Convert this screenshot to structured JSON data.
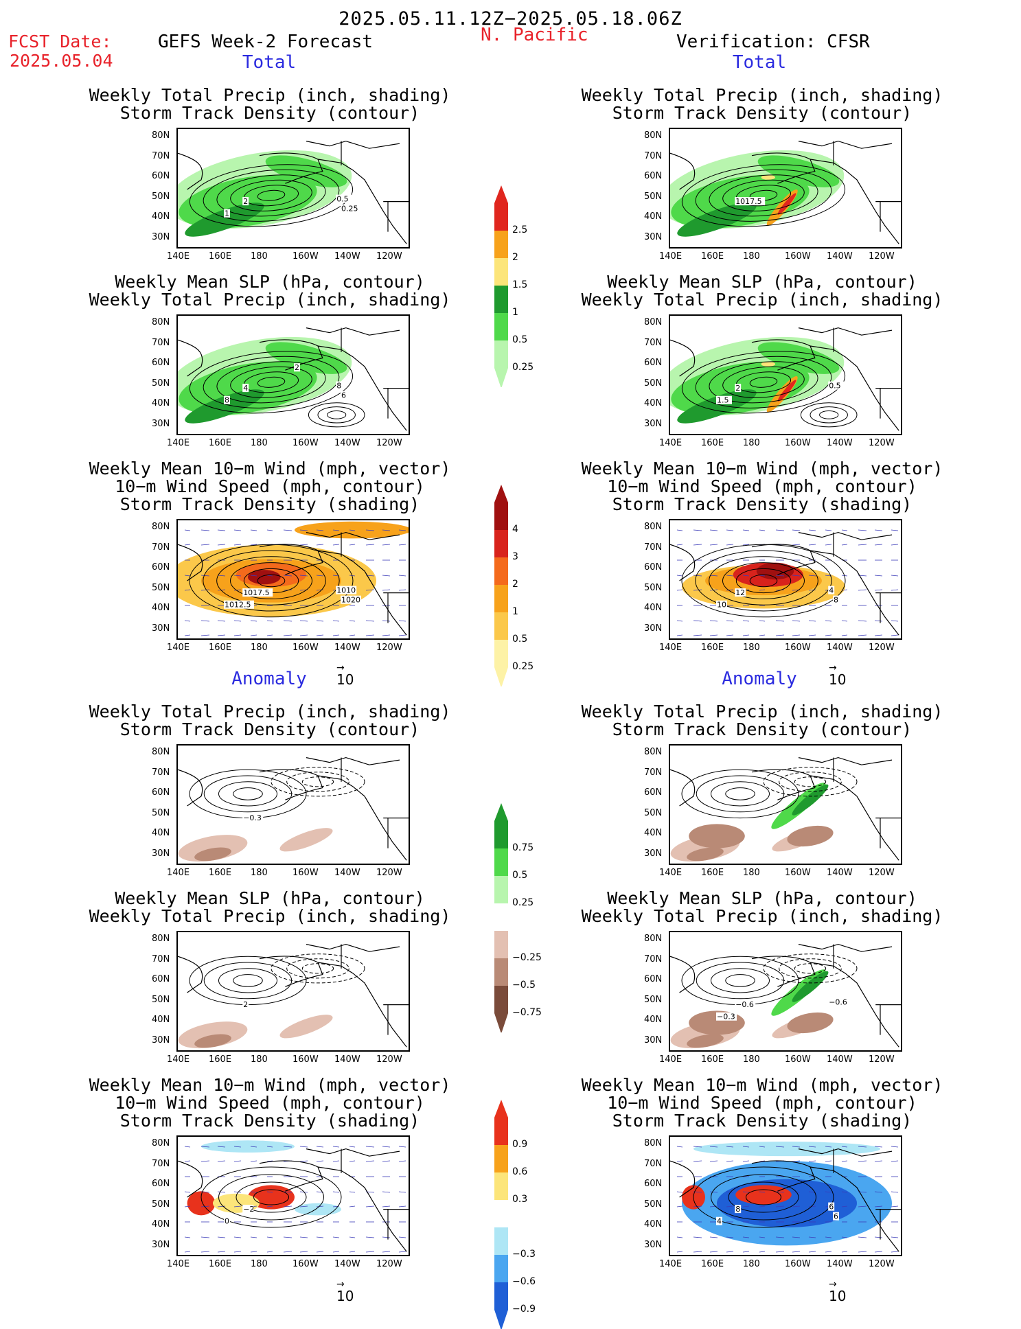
{
  "header": {
    "date_range": "2025.05.11.12Z−2025.05.18.06Z",
    "fcst_label": "FCST Date:",
    "fcst_date": "2025.05.04",
    "forecast_title": "GEFS Week-2 Forecast",
    "region": "N. Pacific",
    "verification_title": "Verification: CFSR"
  },
  "sections": {
    "total": "Total",
    "anomaly": "Anomaly"
  },
  "titles": {
    "precip_track": [
      "Weekly Total Precip (inch, shading)",
      "Storm Track Density (contour)"
    ],
    "slp_precip": [
      "Weekly Mean SLP (hPa, contour)",
      "Weekly Total Precip (inch, shading)"
    ],
    "wind_track": [
      "Weekly Mean 10−m Wind (mph, vector)",
      "10−m Wind Speed (mph, contour)",
      "Storm Track Density (shading)"
    ]
  },
  "axes": {
    "lat_ticks": [
      "80N",
      "70N",
      "60N",
      "50N",
      "40N",
      "30N"
    ],
    "lon_ticks": [
      "140E",
      "160E",
      "180",
      "160W",
      "140W",
      "120W"
    ]
  },
  "vector_ref": "10",
  "colorbars": {
    "precip_total": {
      "labels": [
        "2.5",
        "2",
        "1.5",
        "1",
        "0.5",
        "0.25"
      ],
      "colors": [
        "#e0261e",
        "#f7a21b",
        "#fce57a",
        "#1f9a2e",
        "#4fd94a",
        "#b8f5ae"
      ]
    },
    "track_total": {
      "labels": [
        "4",
        "3",
        "2",
        "1",
        "0.5",
        "0.25"
      ],
      "colors": [
        "#a01010",
        "#d8231c",
        "#f46a1c",
        "#f7a21b",
        "#fbc84a",
        "#fdf2a6"
      ]
    },
    "precip_anom": {
      "labels": [
        "0.75",
        "0.5",
        "0.25",
        "−0.25",
        "−0.5",
        "−0.75"
      ],
      "colors": [
        "#1f9a2e",
        "#4fd94a",
        "#b8f5ae",
        "#ffffff",
        "#e3c0b2",
        "#b98a76",
        "#7a4b3a"
      ]
    },
    "track_anom": {
      "labels": [
        "0.9",
        "0.6",
        "0.3",
        "−0.3",
        "−0.6",
        "−0.9"
      ],
      "colors": [
        "#e8321c",
        "#f7a21b",
        "#fce57a",
        "#ffffff",
        "#aee6f5",
        "#4aa6f0",
        "#1f5fd6"
      ]
    }
  },
  "panels": [
    {
      "id": "p1",
      "labels": [
        "2",
        "1",
        "0.5",
        "0.25"
      ]
    },
    {
      "id": "p2",
      "labels": [
        "1017.5"
      ]
    },
    {
      "id": "p3",
      "labels": [
        "4",
        "8",
        "8",
        "6",
        "2"
      ]
    },
    {
      "id": "p4",
      "labels": [
        "2",
        "1.5",
        "0.5"
      ]
    },
    {
      "id": "p5",
      "labels": [
        "1017.5",
        "1012.5",
        "1010",
        "1020"
      ]
    },
    {
      "id": "p6",
      "labels": [
        "12",
        "10",
        "4",
        "8"
      ]
    },
    {
      "id": "p7",
      "labels": [
        "−0.3"
      ]
    },
    {
      "id": "p8",
      "labels": []
    },
    {
      "id": "p9",
      "labels": [
        "2"
      ]
    },
    {
      "id": "p10",
      "labels": [
        "−0.6",
        "−0.3",
        "−0.6"
      ]
    },
    {
      "id": "p11",
      "labels": [
        "−2",
        "0"
      ]
    },
    {
      "id": "p12",
      "labels": [
        "8",
        "4",
        "6",
        "6"
      ]
    }
  ]
}
